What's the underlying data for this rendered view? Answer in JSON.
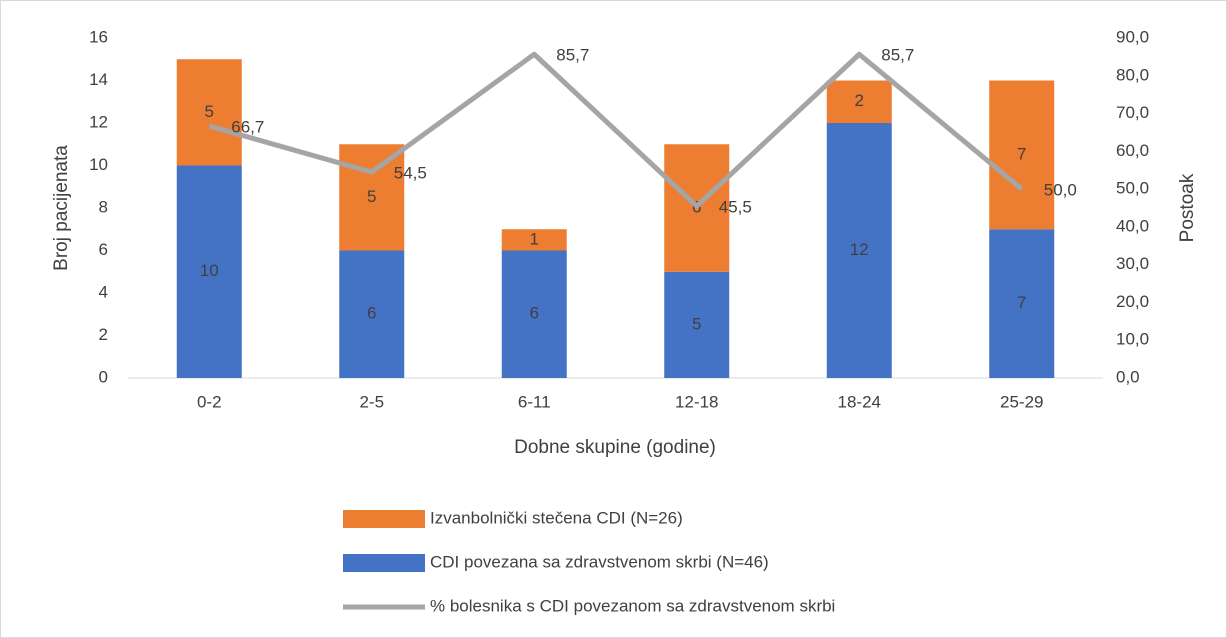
{
  "chart_data": {
    "type": "bar",
    "stacked": true,
    "x_label": "Dobne skupine (godine)",
    "y_label": "Broj pacijenata",
    "y2_label": "Postoak",
    "categories": [
      "0-2",
      "2-5",
      "6-11",
      "12-18",
      "18-24",
      "25-29"
    ],
    "series": [
      {
        "name": "Izvanbolnički stečena CDI (N=26)",
        "color": "#ed7d31",
        "values": [
          5,
          5,
          1,
          6,
          2,
          7
        ],
        "stack_order": 2
      },
      {
        "name": "CDI povezana sa zdravstvenom skrbi (N=46)",
        "color": "#4472c4",
        "values": [
          10,
          6,
          6,
          5,
          12,
          7
        ],
        "stack_order": 1
      },
      {
        "name": "% bolesnika s CDI povezanom sa zdravstvenom skrbi",
        "color": "#a5a5a5",
        "type": "line",
        "axis": "y2",
        "values": [
          66.7,
          54.5,
          85.7,
          45.5,
          85.7,
          50.0
        ],
        "value_labels": [
          "66,7",
          "54,5",
          "85,7",
          "45,5",
          "85,7",
          "50,0"
        ]
      }
    ],
    "ylim": [
      0,
      16
    ],
    "yticks": [
      0,
      2,
      4,
      6,
      8,
      10,
      12,
      14,
      16
    ],
    "y2lim": [
      0,
      90
    ],
    "y2ticks": [
      {
        "value": 0,
        "label": "0,0"
      },
      {
        "value": 10,
        "label": "10,0"
      },
      {
        "value": 20,
        "label": "20,0"
      },
      {
        "value": 30,
        "label": "30,0"
      },
      {
        "value": 40,
        "label": "40,0"
      },
      {
        "value": 50,
        "label": "50,0"
      },
      {
        "value": 60,
        "label": "60,0"
      },
      {
        "value": 70,
        "label": "70,0"
      },
      {
        "value": 80,
        "label": "80,0"
      },
      {
        "value": 90,
        "label": "90,0"
      }
    ],
    "grid": false,
    "legend": "bottom"
  }
}
